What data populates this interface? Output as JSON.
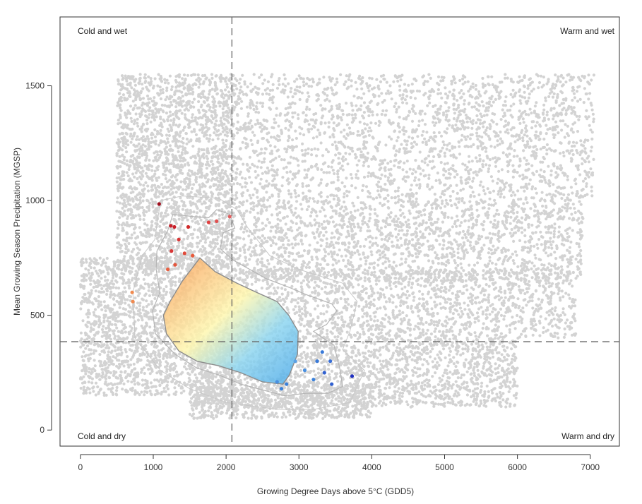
{
  "chart_data": {
    "type": "scatter",
    "xlabel": "Growing Degree Days above 5°C (GDD5)",
    "ylabel": "Mean Growing Season Precipitation (MGSP)",
    "xlim": [
      -280,
      7400
    ],
    "ylim": [
      -70,
      1800
    ],
    "x_ticks": [
      0,
      1000,
      2000,
      3000,
      4000,
      5000,
      6000,
      7000
    ],
    "y_ticks": [
      0,
      500,
      1000,
      1500
    ],
    "reference_lines": {
      "x": 2080,
      "y": 385
    },
    "quadrant_labels": {
      "top_left": "Cold and wet",
      "top_right": "Warm and wet",
      "bottom_left": "Cold and dry",
      "bottom_right": "Warm and dry"
    },
    "grid": false,
    "colors": {
      "background_points": "#d3d3d3",
      "cold_wet": "#c0121e",
      "cold_mid": "#f89a55",
      "center": "#fff7b0",
      "warm_mid": "#8fd6f0",
      "warm_dry": "#1f3fd0",
      "contour_inner": "#8c8c8c",
      "contour_outer": "#b5b5b5"
    },
    "background_cloud": {
      "description_free": true,
      "regions": [
        {
          "x": [
            2100,
            7050
          ],
          "y": [
            1000,
            1550
          ],
          "n": 2200
        },
        {
          "x": [
            2100,
            6900
          ],
          "y": [
            650,
            1000
          ],
          "n": 1800
        },
        {
          "x": [
            2100,
            6800
          ],
          "y": [
            400,
            700
          ],
          "n": 1600
        },
        {
          "x": [
            500,
            2100
          ],
          "y": [
            700,
            1550
          ],
          "n": 2200
        },
        {
          "x": [
            0,
            2100
          ],
          "y": [
            150,
            750
          ],
          "n": 2000
        },
        {
          "x": [
            1500,
            6000
          ],
          "y": [
            100,
            400
          ],
          "n": 2000
        },
        {
          "x": [
            1500,
            4000
          ],
          "y": [
            50,
            200
          ],
          "n": 700
        }
      ]
    },
    "highlighted_points": [
      {
        "x": 1080,
        "y": 985,
        "c": "#a0101e"
      },
      {
        "x": 1240,
        "y": 890,
        "c": "#c8202a"
      },
      {
        "x": 1290,
        "y": 885,
        "c": "#c8202a"
      },
      {
        "x": 1480,
        "y": 885,
        "c": "#d02a2a"
      },
      {
        "x": 1760,
        "y": 905,
        "c": "#e04040"
      },
      {
        "x": 1870,
        "y": 910,
        "c": "#e05050"
      },
      {
        "x": 2050,
        "y": 930,
        "c": "#e06060"
      },
      {
        "x": 1350,
        "y": 830,
        "c": "#d83535"
      },
      {
        "x": 1250,
        "y": 780,
        "c": "#d83535"
      },
      {
        "x": 1430,
        "y": 770,
        "c": "#e04a3a"
      },
      {
        "x": 1540,
        "y": 760,
        "c": "#e85a3a"
      },
      {
        "x": 1300,
        "y": 720,
        "c": "#e4553c"
      },
      {
        "x": 1200,
        "y": 700,
        "c": "#e85f40"
      },
      {
        "x": 720,
        "y": 560,
        "c": "#f08a50"
      },
      {
        "x": 710,
        "y": 600,
        "c": "#f08a50"
      },
      {
        "x": 3250,
        "y": 300,
        "c": "#3a7ad8"
      },
      {
        "x": 3320,
        "y": 340,
        "c": "#3a7ad8"
      },
      {
        "x": 3430,
        "y": 300,
        "c": "#3a70d8"
      },
      {
        "x": 3350,
        "y": 250,
        "c": "#3060d0"
      },
      {
        "x": 3200,
        "y": 220,
        "c": "#3a80da"
      },
      {
        "x": 3080,
        "y": 260,
        "c": "#4a90e0"
      },
      {
        "x": 2950,
        "y": 300,
        "c": "#5aa0e4"
      },
      {
        "x": 2830,
        "y": 200,
        "c": "#3a80da"
      },
      {
        "x": 2760,
        "y": 180,
        "c": "#3a80da"
      },
      {
        "x": 3730,
        "y": 235,
        "c": "#1f2fc0"
      },
      {
        "x": 2700,
        "y": 210,
        "c": "#4a90e0"
      },
      {
        "x": 3450,
        "y": 200,
        "c": "#3060d0"
      }
    ],
    "contours": {
      "inner": [
        [
          1640,
          750
        ],
        [
          1850,
          690
        ],
        [
          2150,
          640
        ],
        [
          2420,
          600
        ],
        [
          2700,
          560
        ],
        [
          2860,
          500
        ],
        [
          2990,
          430
        ],
        [
          2980,
          330
        ],
        [
          2870,
          240
        ],
        [
          2780,
          200
        ],
        [
          2500,
          210
        ],
        [
          2200,
          250
        ],
        [
          1900,
          280
        ],
        [
          1600,
          300
        ],
        [
          1350,
          345
        ],
        [
          1180,
          420
        ],
        [
          1140,
          500
        ],
        [
          1230,
          560
        ],
        [
          1400,
          650
        ]
      ],
      "outer": [
        [
          1200,
          870
        ],
        [
          1270,
          940
        ],
        [
          1560,
          930
        ],
        [
          1760,
          925
        ],
        [
          1870,
          960
        ],
        [
          2050,
          940
        ],
        [
          2120,
          880
        ],
        [
          1960,
          860
        ],
        [
          1920,
          790
        ],
        [
          2100,
          740
        ],
        [
          2550,
          660
        ],
        [
          2880,
          620
        ],
        [
          3100,
          590
        ],
        [
          3450,
          550
        ],
        [
          3520,
          520
        ],
        [
          3380,
          460
        ],
        [
          3200,
          430
        ],
        [
          3380,
          390
        ],
        [
          3480,
          370
        ],
        [
          3560,
          270
        ],
        [
          3600,
          190
        ],
        [
          3400,
          160
        ],
        [
          3100,
          160
        ],
        [
          2800,
          150
        ],
        [
          2560,
          170
        ],
        [
          2200,
          200
        ],
        [
          1900,
          240
        ],
        [
          1600,
          270
        ],
        [
          1300,
          330
        ],
        [
          1030,
          420
        ],
        [
          990,
          520
        ],
        [
          1090,
          600
        ],
        [
          1040,
          700
        ],
        [
          1050,
          780
        ]
      ],
      "faint": [
        [
          1020,
          830
        ],
        [
          1100,
          1000
        ],
        [
          1400,
          1020
        ],
        [
          1900,
          1010
        ],
        [
          2150,
          960
        ],
        [
          2300,
          880
        ],
        [
          2600,
          760
        ],
        [
          3000,
          700
        ],
        [
          3600,
          640
        ],
        [
          3800,
          560
        ],
        [
          3700,
          430
        ],
        [
          3600,
          350
        ],
        [
          3900,
          260
        ],
        [
          3700,
          120
        ],
        [
          3200,
          90
        ],
        [
          2700,
          90
        ],
        [
          2000,
          120
        ],
        [
          1500,
          180
        ],
        [
          1100,
          260
        ],
        [
          750,
          400
        ],
        [
          720,
          600
        ],
        [
          850,
          760
        ]
      ]
    }
  }
}
